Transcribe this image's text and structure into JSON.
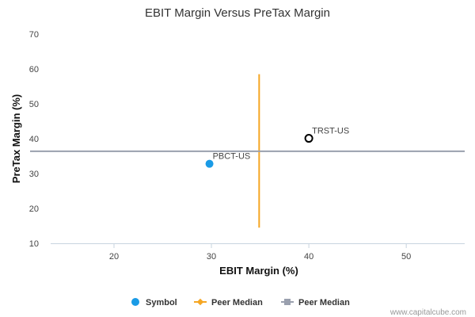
{
  "chart_data": {
    "type": "scatter",
    "title": "EBIT Margin Versus PreTax Margin",
    "xlabel": "EBIT Margin (%)",
    "ylabel": "PreTax Margin (%)",
    "xlim": [
      13.5,
      56
    ],
    "ylim": [
      10,
      70
    ],
    "x_ticks": [
      20,
      30,
      40,
      50
    ],
    "y_ticks": [
      10,
      20,
      30,
      40,
      50,
      60,
      70
    ],
    "grid": false,
    "points": [
      {
        "label": "PBCT-US",
        "x": 29.8,
        "y": 32.8,
        "style": "filled",
        "color": "#1a9be6"
      },
      {
        "label": "TRST-US",
        "x": 40.0,
        "y": 40.1,
        "style": "hollow",
        "color": "#000000"
      }
    ],
    "peer_median_x": {
      "value": 34.9,
      "y_range": [
        14.5,
        58.5
      ],
      "color": "#f5a623"
    },
    "peer_median_y": {
      "value": 36.4,
      "color": "#9aa0ae"
    },
    "legend": {
      "position": "bottom",
      "items": [
        {
          "label": "Symbol",
          "marker": "circle",
          "color": "#1a9be6"
        },
        {
          "label": "Peer Median",
          "marker": "diamond-line",
          "color": "#f5a623"
        },
        {
          "label": "Peer Median",
          "marker": "square-line",
          "color": "#9aa0ae"
        }
      ]
    }
  },
  "credit": "www.capitalcube.com"
}
